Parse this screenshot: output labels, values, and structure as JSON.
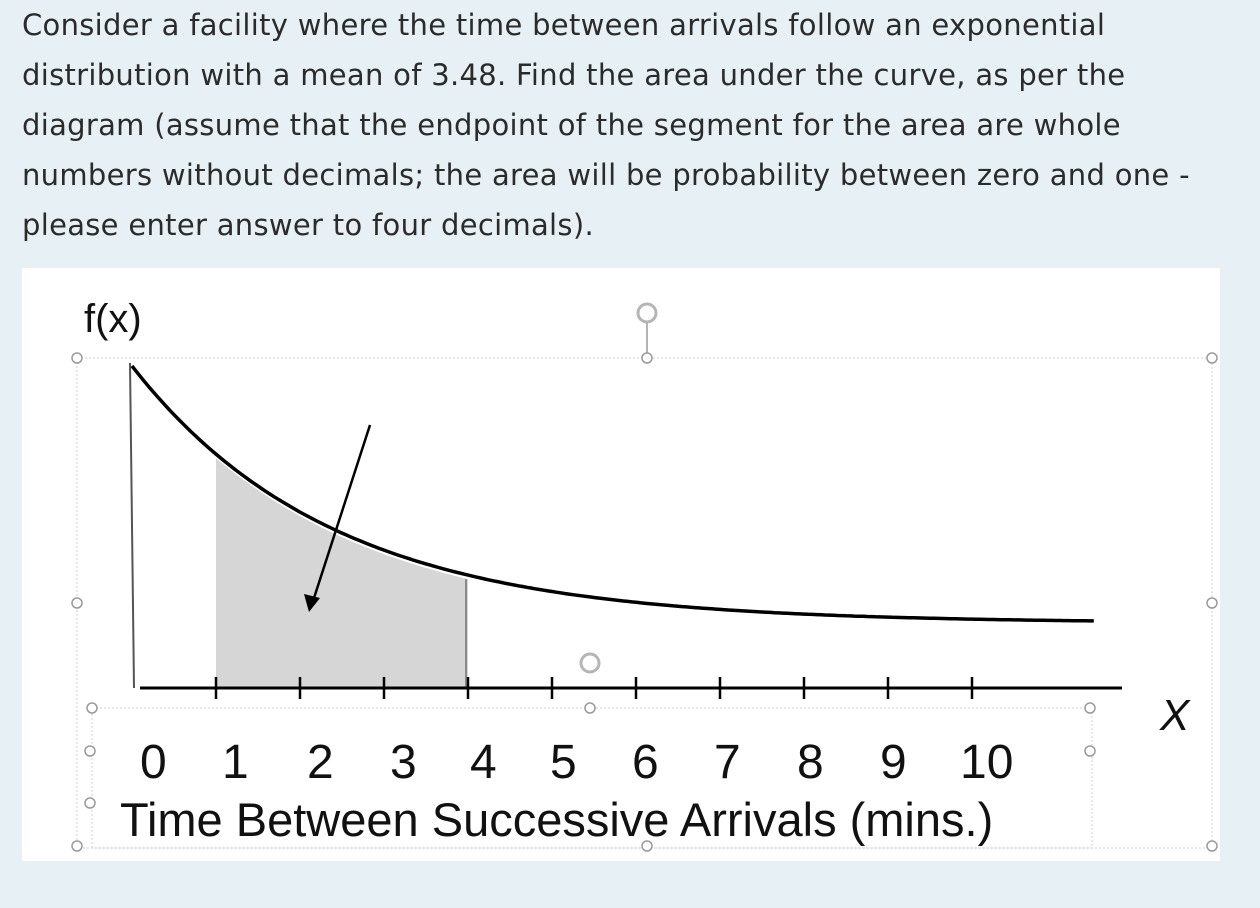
{
  "question": {
    "text": "Consider a facility where the time between arrivals follow an exponential distribution with a mean of 3.48.  Find the area under the curve, as per the diagram (assume that the endpoint of the segment for the area are whole numbers without decimals; the area will be probability between zero and one - please enter answer to four decimals)."
  },
  "chart_data": {
    "type": "area",
    "ylabel": "f(x)",
    "x_symbol": "X",
    "xlabel": "Time Between Successive Arrivals (mins.)",
    "tick_labels": [
      "0",
      "1",
      "2",
      "3",
      "4",
      "5",
      "6",
      "7",
      "8",
      "9",
      "10"
    ],
    "xlim": [
      0,
      10
    ],
    "distribution": "exponential",
    "mean": 3.48,
    "shaded_interval": [
      1,
      4
    ],
    "arrow_points_to": "shaded-area",
    "grid": false,
    "colors": {
      "curve": "#000000",
      "shade": "#d6d6d6",
      "axis": "#000000"
    }
  }
}
